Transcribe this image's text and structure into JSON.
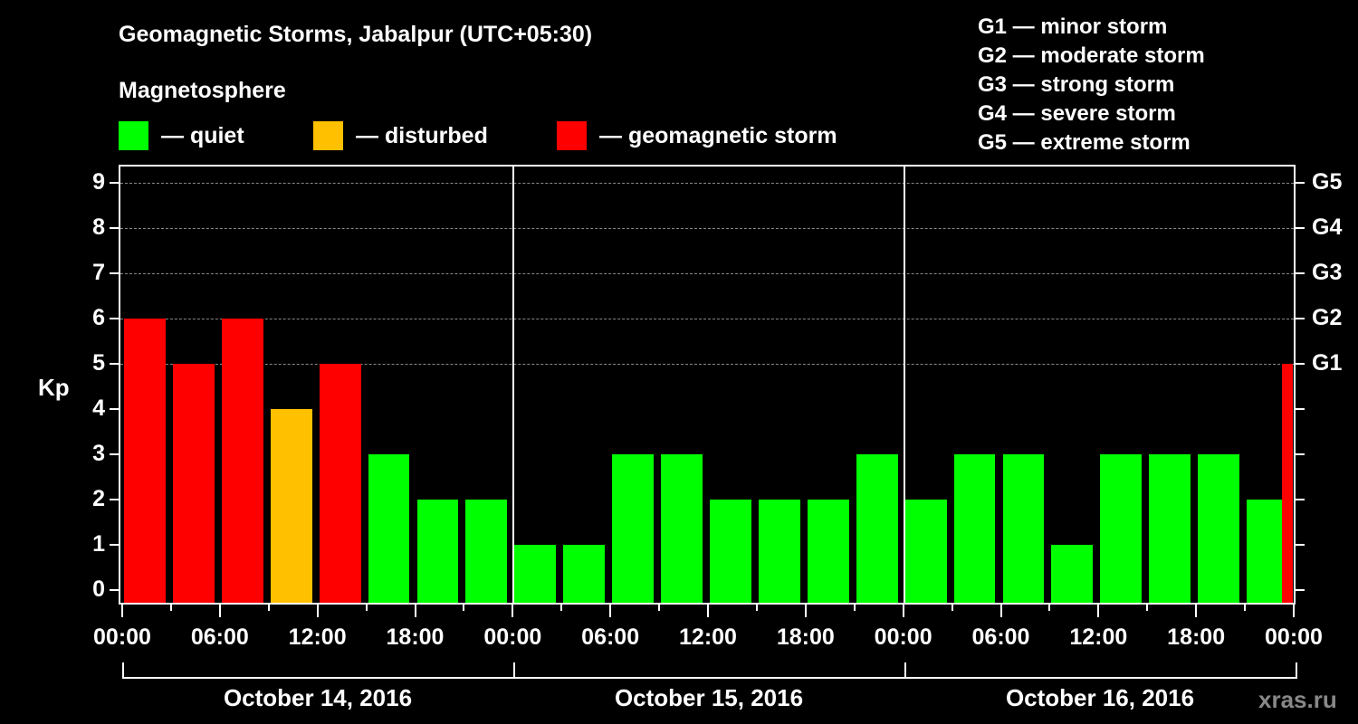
{
  "header": {
    "title": "Geomagnetic Storms, Jabalpur (UTC+05:30)",
    "subtitle": "Magnetosphere"
  },
  "legend": {
    "items": [
      {
        "label": "— quiet",
        "color": "#00ff00"
      },
      {
        "label": "— disturbed",
        "color": "#ffc000"
      },
      {
        "label": "— geomagnetic storm",
        "color": "#ff0000"
      }
    ]
  },
  "g_legend": [
    "G1 — minor storm",
    "G2 — moderate storm",
    "G3 — strong storm",
    "G4 — severe storm",
    "G5 — extreme storm"
  ],
  "axes": {
    "ylabel": "Kp",
    "yticks": [
      "0",
      "1",
      "2",
      "3",
      "4",
      "5",
      "6",
      "7",
      "8",
      "9"
    ],
    "g_ticks": [
      {
        "kp": 5,
        "label": "G1"
      },
      {
        "kp": 6,
        "label": "G2"
      },
      {
        "kp": 7,
        "label": "G3"
      },
      {
        "kp": 8,
        "label": "G4"
      },
      {
        "kp": 9,
        "label": "G5"
      }
    ],
    "xticks": [
      "00:00",
      "06:00",
      "12:00",
      "18:00",
      "00:00",
      "06:00",
      "12:00",
      "18:00",
      "00:00",
      "06:00",
      "12:00",
      "18:00",
      "00:00"
    ],
    "days": [
      "October 14, 2016",
      "October 15, 2016",
      "October 16, 2016"
    ]
  },
  "watermark": "xras.ru",
  "chart_data": {
    "type": "bar",
    "title": "Geomagnetic Storms, Jabalpur (UTC+05:30)",
    "subtitle": "Magnetosphere",
    "xlabel": "",
    "ylabel": "Kp",
    "ylim": [
      0,
      9
    ],
    "grid": "dashed horizontal lines at Kp 5–9",
    "interval_hours": 3,
    "categories": [
      "Oct 14 00:00",
      "Oct 14 03:00",
      "Oct 14 06:00",
      "Oct 14 09:00",
      "Oct 14 12:00",
      "Oct 14 15:00",
      "Oct 14 18:00",
      "Oct 14 21:00",
      "Oct 15 00:00",
      "Oct 15 03:00",
      "Oct 15 06:00",
      "Oct 15 09:00",
      "Oct 15 12:00",
      "Oct 15 15:00",
      "Oct 15 18:00",
      "Oct 15 21:00",
      "Oct 16 00:00",
      "Oct 16 03:00",
      "Oct 16 06:00",
      "Oct 16 09:00",
      "Oct 16 12:00",
      "Oct 16 15:00",
      "Oct 16 18:00",
      "Oct 16 21:00",
      "Oct 16 23:30"
    ],
    "values": [
      6,
      5,
      6,
      4,
      5,
      3,
      2,
      2,
      1,
      1,
      3,
      3,
      2,
      2,
      2,
      3,
      2,
      3,
      3,
      1,
      3,
      3,
      3,
      2,
      5
    ],
    "status": [
      "storm",
      "storm",
      "storm",
      "disturbed",
      "storm",
      "quiet",
      "quiet",
      "quiet",
      "quiet",
      "quiet",
      "quiet",
      "quiet",
      "quiet",
      "quiet",
      "quiet",
      "quiet",
      "quiet",
      "quiet",
      "quiet",
      "quiet",
      "quiet",
      "quiet",
      "quiet",
      "quiet",
      "storm"
    ],
    "colors": {
      "quiet": "#00ff00",
      "disturbed": "#ffc000",
      "storm": "#ff0000"
    },
    "legend": [
      "quiet",
      "disturbed",
      "geomagnetic storm"
    ],
    "g_scale": {
      "G1": 5,
      "G2": 6,
      "G3": 7,
      "G4": 8,
      "G5": 9
    }
  }
}
